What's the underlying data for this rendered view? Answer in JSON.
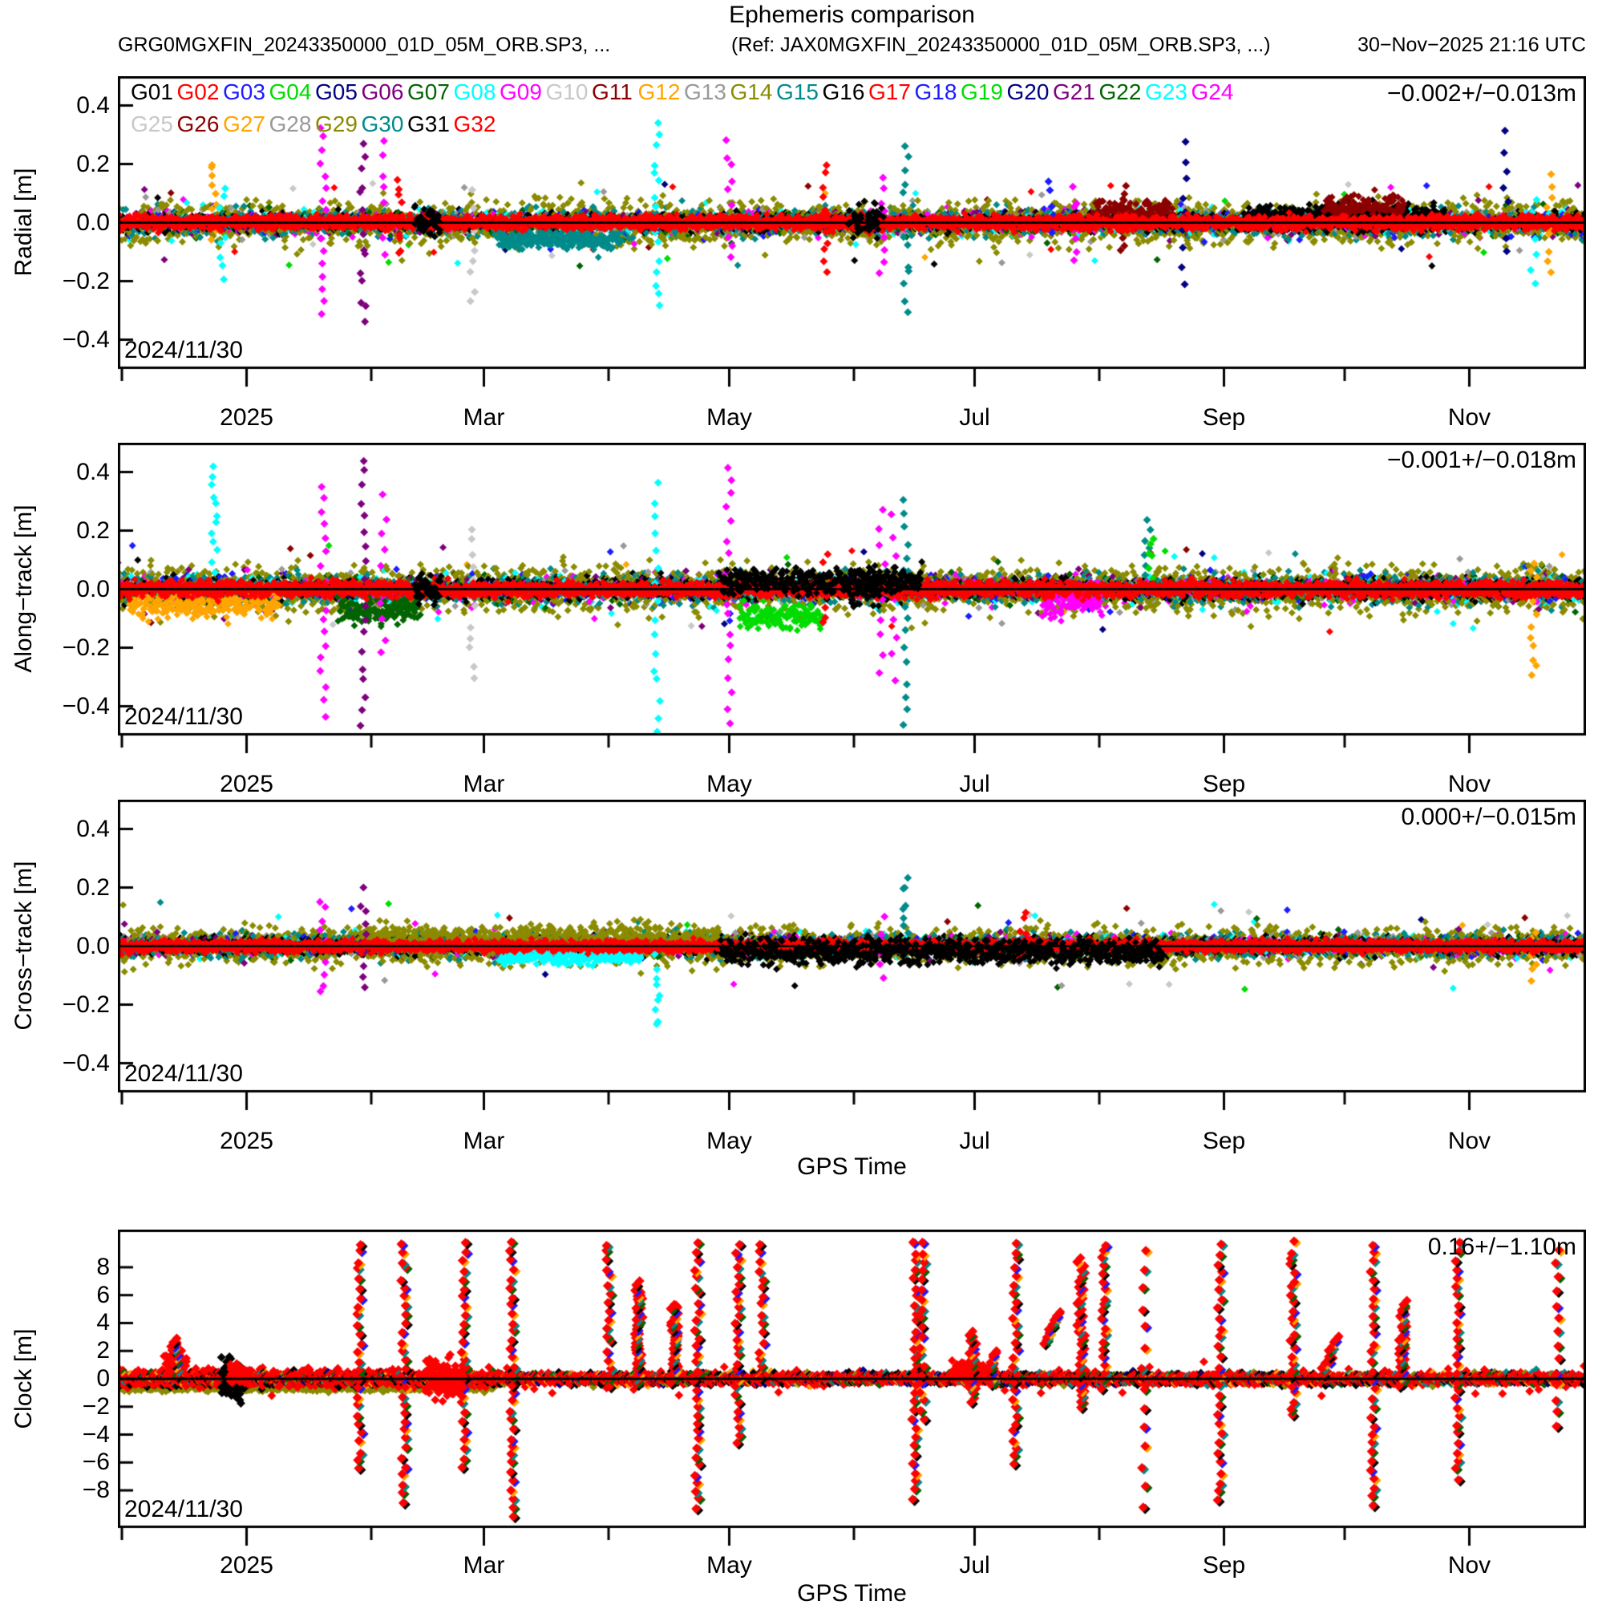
{
  "title": "Ephemeris comparison",
  "header": {
    "left": "GRG0MGXFIN_20243350000_01D_05M_ORB.SP3, ...",
    "ref": "(Ref: JAX0MGXFIN_20243350000_01D_05M_ORB.SP3, ...)",
    "timestamp": "30−Nov−2025 21:16 UTC"
  },
  "legend": {
    "items": [
      {
        "label": "G01",
        "color": "#000000"
      },
      {
        "label": "G02",
        "color": "#ff0000"
      },
      {
        "label": "G03",
        "color": "#1c1cff"
      },
      {
        "label": "G04",
        "color": "#00dc00"
      },
      {
        "label": "G05",
        "color": "#000082"
      },
      {
        "label": "G06",
        "color": "#7d007d"
      },
      {
        "label": "G07",
        "color": "#006400"
      },
      {
        "label": "G08",
        "color": "#00ffff"
      },
      {
        "label": "G09",
        "color": "#ff00ff"
      },
      {
        "label": "G10",
        "color": "#c8c8c8"
      },
      {
        "label": "G11",
        "color": "#8b0000"
      },
      {
        "label": "G12",
        "color": "#ffa500"
      },
      {
        "label": "G13",
        "color": "#999999"
      },
      {
        "label": "G14",
        "color": "#8b8b00"
      },
      {
        "label": "G15",
        "color": "#008b8b"
      },
      {
        "label": "G16",
        "color": "#000000"
      },
      {
        "label": "G17",
        "color": "#ff0000"
      },
      {
        "label": "G18",
        "color": "#1c1cff"
      },
      {
        "label": "G19",
        "color": "#00dc00"
      },
      {
        "label": "G20",
        "color": "#000082"
      },
      {
        "label": "G21",
        "color": "#7d007d"
      },
      {
        "label": "G22",
        "color": "#006400"
      },
      {
        "label": "G23",
        "color": "#00ffff"
      },
      {
        "label": "G24",
        "color": "#ff00ff"
      },
      {
        "label": "G25",
        "color": "#c8c8c8"
      },
      {
        "label": "G26",
        "color": "#8b0000"
      },
      {
        "label": "G27",
        "color": "#ffa500"
      },
      {
        "label": "G28",
        "color": "#999999"
      },
      {
        "label": "G29",
        "color": "#8b8b00"
      },
      {
        "label": "G30",
        "color": "#008b8b"
      },
      {
        "label": "G31",
        "color": "#000000"
      },
      {
        "label": "G32",
        "color": "#ff0000"
      }
    ]
  },
  "x_axis": {
    "label": "GPS Time",
    "start": "2024/11/30",
    "end": "2025/11/30",
    "days": 365,
    "major_ticks": [
      {
        "day": 32,
        "label": "2025"
      },
      {
        "day": 91,
        "label": "Mar"
      },
      {
        "day": 152,
        "label": "May"
      },
      {
        "day": 213,
        "label": "Jul"
      },
      {
        "day": 275,
        "label": "Sep"
      },
      {
        "day": 336,
        "label": "Nov"
      }
    ],
    "minor_ticks": [
      1,
      63,
      122,
      183,
      244,
      305
    ]
  },
  "chart_data": [
    {
      "id": "radial",
      "type": "scatter",
      "ylabel": "Radial [m]",
      "ylim": [
        -0.5,
        0.5
      ],
      "yticks": [
        0.4,
        0.2,
        0,
        -0.2,
        -0.4
      ],
      "ytick_decimals": 1,
      "stat": "−0.002+/−0.013m",
      "date_label": "2024/11/30",
      "zero_line": true,
      "band": {
        "step": 0.33,
        "outer_sd": 0.026,
        "olive_sd": 0.05,
        "black_sd": 0.02,
        "red_sd": 0.016,
        "teal_sd": 0.032
      },
      "patches": [
        {
          "sat": "G16",
          "d0": 74,
          "d1": 80,
          "m": 0,
          "sd": 0.04,
          "top": true
        },
        {
          "sat": "G16",
          "d0": 182,
          "d1": 190,
          "m": 0,
          "sd": 0.035,
          "top": true
        },
        {
          "sat": "G30",
          "d0": 95,
          "d1": 125,
          "m": -0.06,
          "sd": 0.02
        },
        {
          "sat": "G26",
          "d0": 243,
          "d1": 262,
          "m": 0.04,
          "sd": 0.03
        },
        {
          "sat": "G16",
          "d0": 280,
          "d1": 330,
          "m": 0.02,
          "sd": 0.03
        },
        {
          "sat": "G26",
          "d0": 300,
          "d1": 320,
          "m": 0.05,
          "sd": 0.03
        }
      ],
      "spikes": [
        {
          "sat": "G27",
          "d": 24,
          "lo": -0.05,
          "hi": 0.21,
          "n": 10
        },
        {
          "sat": "G08",
          "d": 26,
          "lo": -0.19,
          "hi": 0.12,
          "n": 9
        },
        {
          "sat": "G09",
          "d": 51,
          "lo": -0.31,
          "hi": 0.33,
          "n": 16
        },
        {
          "sat": "G06",
          "d": 61,
          "lo": -0.34,
          "hi": 0.26,
          "n": 15
        },
        {
          "sat": "G09",
          "d": 66,
          "lo": -0.1,
          "hi": 0.28,
          "n": 8
        },
        {
          "sat": "G17",
          "d": 70,
          "lo": -0.12,
          "hi": 0.14,
          "n": 10
        },
        {
          "sat": "G25",
          "d": 88,
          "lo": -0.27,
          "hi": 0.1,
          "n": 9
        },
        {
          "sat": "G23",
          "d": 134,
          "lo": -0.29,
          "hi": 0.34,
          "n": 16
        },
        {
          "sat": "G09",
          "d": 152,
          "lo": -0.13,
          "hi": 0.28,
          "n": 10
        },
        {
          "sat": "G17",
          "d": 176,
          "lo": -0.17,
          "hi": 0.19,
          "n": 12
        },
        {
          "sat": "G09",
          "d": 190,
          "lo": -0.17,
          "hi": 0.16,
          "n": 9
        },
        {
          "sat": "G30",
          "d": 196,
          "lo": -0.31,
          "hi": 0.27,
          "n": 14
        },
        {
          "sat": "G03",
          "d": 232,
          "lo": -0.05,
          "hi": 0.13,
          "n": 6
        },
        {
          "sat": "G09",
          "d": 238,
          "lo": -0.12,
          "hi": 0.11,
          "n": 8
        },
        {
          "sat": "G26",
          "d": 250,
          "lo": -0.1,
          "hi": 0.13,
          "n": 10
        },
        {
          "sat": "G20",
          "d": 265,
          "lo": -0.21,
          "hi": 0.27,
          "n": 9
        },
        {
          "sat": "G20",
          "d": 345,
          "lo": -0.11,
          "hi": 0.29,
          "n": 8
        },
        {
          "sat": "G23",
          "d": 352,
          "lo": -0.21,
          "hi": 0.08,
          "n": 7
        },
        {
          "sat": "G27",
          "d": 356,
          "lo": -0.16,
          "hi": 0.16,
          "n": 10
        }
      ]
    },
    {
      "id": "along_track",
      "type": "scatter",
      "ylabel": "Along−track [m]",
      "ylim": [
        -0.5,
        0.5
      ],
      "yticks": [
        0.4,
        0.2,
        0,
        -0.2,
        -0.4
      ],
      "ytick_decimals": 1,
      "stat": "−0.001+/−0.018m",
      "date_label": "2024/11/30",
      "zero_line": true,
      "band": {
        "step": 0.33,
        "outer_sd": 0.03,
        "olive_sd": 0.055,
        "black_sd": 0.024,
        "red_sd": 0.018,
        "teal_sd": 0.036
      },
      "patches": [
        {
          "sat": "G27",
          "d0": 3,
          "d1": 40,
          "m": -0.05,
          "sd": 0.035
        },
        {
          "sat": "G07",
          "d0": 55,
          "d1": 75,
          "m": -0.07,
          "sd": 0.03
        },
        {
          "sat": "G16",
          "d0": 74,
          "d1": 80,
          "m": 0,
          "sd": 0.045,
          "top": true
        },
        {
          "sat": "G16",
          "d0": 150,
          "d1": 200,
          "m": 0.03,
          "sd": 0.03,
          "top": true
        },
        {
          "sat": "G04",
          "d0": 155,
          "d1": 175,
          "m": -0.09,
          "sd": 0.03
        },
        {
          "sat": "G16",
          "d0": 182,
          "d1": 190,
          "m": 0,
          "sd": 0.04,
          "top": true
        },
        {
          "sat": "G09",
          "d0": 230,
          "d1": 245,
          "m": -0.05,
          "sd": 0.04
        }
      ],
      "spikes": [
        {
          "sat": "G08",
          "d": 24,
          "lo": 0.06,
          "hi": 0.42,
          "n": 12
        },
        {
          "sat": "G09",
          "d": 51,
          "lo": -0.43,
          "hi": 0.36,
          "n": 18
        },
        {
          "sat": "G06",
          "d": 61,
          "lo": -0.47,
          "hi": 0.5,
          "n": 20
        },
        {
          "sat": "G09",
          "d": 66,
          "lo": -0.22,
          "hi": 0.31,
          "n": 10
        },
        {
          "sat": "G25",
          "d": 88,
          "lo": -0.31,
          "hi": 0.22,
          "n": 12
        },
        {
          "sat": "G23",
          "d": 134,
          "lo": -0.5,
          "hi": 0.36,
          "n": 16
        },
        {
          "sat": "G09",
          "d": 152,
          "lo": -0.56,
          "hi": 0.43,
          "n": 20
        },
        {
          "sat": "G17",
          "d": 176,
          "lo": -0.12,
          "hi": 0.12,
          "n": 8
        },
        {
          "sat": "G09",
          "d": 190,
          "lo": -0.28,
          "hi": 0.27,
          "n": 10
        },
        {
          "sat": "G09",
          "d": 193,
          "lo": -0.3,
          "hi": 0.25,
          "n": 9
        },
        {
          "sat": "G30",
          "d": 196,
          "lo": -0.46,
          "hi": 0.31,
          "n": 16
        },
        {
          "sat": "G30",
          "d": 256,
          "lo": 0.05,
          "hi": 0.23,
          "n": 7
        },
        {
          "sat": "G19",
          "d": 257,
          "lo": 0.04,
          "hi": 0.18,
          "n": 6
        },
        {
          "sat": "G27",
          "d": 352,
          "lo": -0.31,
          "hi": 0.1,
          "n": 12
        }
      ]
    },
    {
      "id": "cross_track",
      "type": "scatter",
      "ylabel": "Cross−track [m]",
      "ylim": [
        -0.5,
        0.5
      ],
      "yticks": [
        0.4,
        0.2,
        0,
        -0.2,
        -0.4
      ],
      "ytick_decimals": 1,
      "stat": "0.000+/−0.015m",
      "date_label": "2024/11/30",
      "zero_line": true,
      "band": {
        "step": 0.33,
        "outer_sd": 0.022,
        "olive_sd": 0.042,
        "black_sd": 0.02,
        "red_sd": 0.013,
        "teal_sd": 0.028
      },
      "patches": [
        {
          "sat": "G14",
          "d0": 60,
          "d1": 150,
          "m": 0.02,
          "sd": 0.035
        },
        {
          "sat": "G23",
          "d0": 95,
          "d1": 130,
          "m": -0.04,
          "sd": 0.015
        },
        {
          "sat": "G16",
          "d0": 150,
          "d1": 260,
          "m": -0.02,
          "sd": 0.03,
          "top": true
        }
      ],
      "spikes": [
        {
          "sat": "G09",
          "d": 51,
          "lo": -0.17,
          "hi": 0.17,
          "n": 10
        },
        {
          "sat": "G06",
          "d": 61,
          "lo": -0.14,
          "hi": 0.19,
          "n": 10
        },
        {
          "sat": "G23",
          "d": 134,
          "lo": -0.28,
          "hi": -0.04,
          "n": 9
        },
        {
          "sat": "G09",
          "d": 190,
          "lo": -0.1,
          "hi": 0.09,
          "n": 6
        },
        {
          "sat": "G30",
          "d": 196,
          "lo": 0.04,
          "hi": 0.23,
          "n": 8
        },
        {
          "sat": "G17",
          "d": 225,
          "lo": -0.05,
          "hi": 0.12,
          "n": 8
        },
        {
          "sat": "G27",
          "d": 352,
          "lo": -0.12,
          "hi": 0.06,
          "n": 7
        }
      ]
    },
    {
      "id": "clock",
      "type": "scatter",
      "ylabel": "Clock [m]",
      "ylim": [
        -10.7,
        10.7
      ],
      "yticks": [
        8,
        6,
        4,
        2,
        0,
        -2,
        -4,
        -6,
        -8
      ],
      "ytick_decimals": 0,
      "stat": "0.16+/−1.10m",
      "date_label": "2024/11/30",
      "zero_line": true,
      "band": {
        "step": 0.25,
        "shadow_sd": 0.28,
        "black_sd": 0.33,
        "red_sd_early": 0.38,
        "red_sd_late": 0.22,
        "early_until_day": 95,
        "wild_every": 9,
        "wild_sd": 0.75
      },
      "patches": [
        {
          "sat": "G14",
          "d0": 0,
          "d1": 93,
          "m": -0.55,
          "sd": 0.18
        },
        {
          "sat": "G16",
          "d0": 26,
          "d1": 31,
          "m": 0,
          "sd": 1.0,
          "top": true
        },
        {
          "sat": "G32",
          "d0": 12,
          "d1": 17,
          "m": 1.1,
          "sd": 0.75,
          "top": true
        },
        {
          "sat": "G32",
          "d0": 28,
          "d1": 33,
          "m": 0.3,
          "sd": 0.5,
          "top": true
        },
        {
          "sat": "G32",
          "d0": 77,
          "d1": 86,
          "m": 0,
          "sd": 0.95,
          "top": true
        },
        {
          "sat": "G32",
          "d0": 208,
          "d1": 216,
          "m": 0.5,
          "sd": 0.45,
          "top": true
        }
      ],
      "spikes": [
        {
          "d": 14,
          "lo": 0.4,
          "hi": 2.6,
          "n": 16,
          "dense": 1
        },
        {
          "d": 60,
          "lo": -6.5,
          "hi": 9.7,
          "n": 26
        },
        {
          "d": 71,
          "lo": -8.8,
          "hi": 9.7,
          "n": 30
        },
        {
          "d": 86,
          "lo": -6.3,
          "hi": 9.7,
          "n": 26
        },
        {
          "d": 98,
          "lo": -9.9,
          "hi": 9.7,
          "n": 32
        },
        {
          "d": 122,
          "lo": -0.5,
          "hi": 9.7,
          "n": 18
        },
        {
          "d": 129,
          "lo": -0.5,
          "hi": 6.6,
          "n": 26,
          "dense": 1
        },
        {
          "d": 138,
          "lo": -0.3,
          "hi": 5.2,
          "n": 22,
          "dense": 1
        },
        {
          "d": 144,
          "lo": -9.3,
          "hi": 9.7,
          "n": 32
        },
        {
          "d": 154,
          "lo": -4.6,
          "hi": 9.7,
          "n": 26
        },
        {
          "d": 160,
          "lo": 0.2,
          "hi": 9.7,
          "n": 16
        },
        {
          "d": 198,
          "lo": -8.6,
          "hi": 9.7,
          "n": 30
        },
        {
          "d": 200,
          "lo": -3.0,
          "hi": 9.7,
          "n": 20
        },
        {
          "d": 212,
          "lo": -1.6,
          "hi": 3.2,
          "n": 12,
          "dense": 1
        },
        {
          "d": 217,
          "lo": -0.6,
          "hi": 1.7,
          "n": 10,
          "dense": 1
        },
        {
          "d": 223,
          "lo": -6.2,
          "hi": 9.7,
          "n": 28
        },
        {
          "d": 232,
          "lo": 2.6,
          "hi": 4.6,
          "n": 10,
          "dense": 1,
          "slant": 1
        },
        {
          "d": 239,
          "lo": -2.1,
          "hi": 8.3,
          "n": 24,
          "dense": 1
        },
        {
          "d": 245,
          "lo": -0.6,
          "hi": 9.7,
          "n": 20
        },
        {
          "d": 255,
          "lo": -9.2,
          "hi": 9.3,
          "n": 14
        },
        {
          "d": 274,
          "lo": -8.7,
          "hi": 9.7,
          "n": 28
        },
        {
          "d": 292,
          "lo": -2.6,
          "hi": 9.7,
          "n": 24
        },
        {
          "d": 301,
          "lo": 0.3,
          "hi": 2.7,
          "n": 10,
          "dense": 1,
          "slant": 1
        },
        {
          "d": 312,
          "lo": -9.2,
          "hi": 9.7,
          "n": 30
        },
        {
          "d": 319,
          "lo": -0.5,
          "hi": 5.3,
          "n": 22,
          "dense": 1
        },
        {
          "d": 333,
          "lo": -7.1,
          "hi": 9.7,
          "n": 28
        },
        {
          "d": 358,
          "lo": -3.4,
          "hi": 9.2,
          "n": 14
        }
      ]
    }
  ]
}
